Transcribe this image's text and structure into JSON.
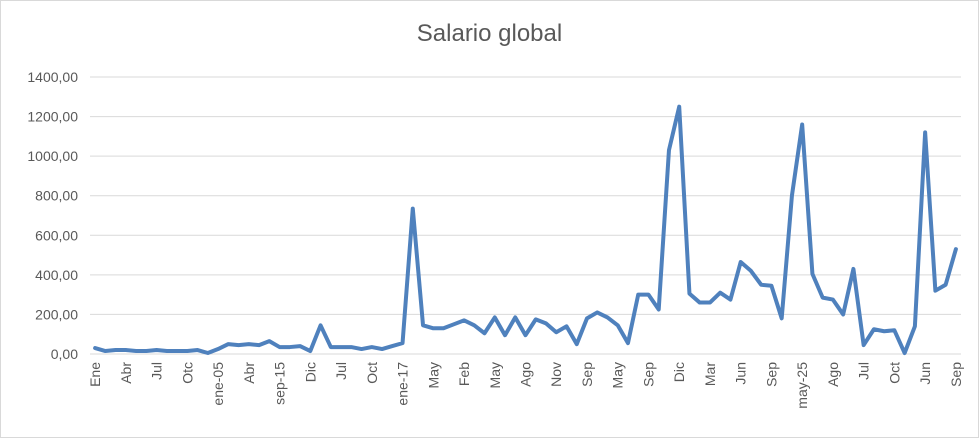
{
  "chart_data": {
    "type": "line",
    "title": "Salario global",
    "xlabel": "",
    "ylabel": "",
    "ylim": [
      0,
      1400
    ],
    "y_ticks": [
      "0,00",
      "200,00",
      "400,00",
      "600,00",
      "800,00",
      "1000,00",
      "1200,00",
      "1400,00"
    ],
    "y_tick_values": [
      0,
      200,
      400,
      600,
      800,
      1000,
      1200,
      1400
    ],
    "x_tick_labels": [
      "Ene",
      "Abr",
      "Jul",
      "Otc",
      "ene-05",
      "Abr",
      "sep-15",
      "Dic",
      "Jul",
      "Oct",
      "ene-17",
      "May",
      "Feb",
      "May",
      "Ago",
      "Nov",
      "Sep",
      "May",
      "Sep",
      "Dic",
      "Mar",
      "Jun",
      "Sep",
      "may-25",
      "Ago",
      "Jul",
      "Oct",
      "Jun",
      "Sep"
    ],
    "x_tick_index": [
      0,
      3,
      6,
      9,
      12,
      15,
      18,
      21,
      24,
      27,
      30,
      33,
      36,
      39,
      42,
      45,
      48,
      51,
      54,
      57,
      60,
      63,
      66,
      69,
      72,
      75,
      78,
      81,
      84
    ],
    "grid": true,
    "legend": "none",
    "line_color": "#4f81bd",
    "series": [
      {
        "values": [
          30,
          15,
          20,
          20,
          15,
          15,
          20,
          15,
          15,
          15,
          20,
          5,
          25,
          50,
          45,
          50,
          45,
          65,
          35,
          35,
          40,
          15,
          145,
          35,
          35,
          35,
          25,
          35,
          25,
          40,
          55,
          735,
          145,
          130,
          130,
          150,
          170,
          145,
          105,
          185,
          95,
          185,
          95,
          175,
          155,
          110,
          140,
          50,
          180,
          210,
          185,
          145,
          55,
          300,
          300,
          225,
          1030,
          1250,
          305,
          260,
          260,
          310,
          275,
          465,
          420,
          350,
          345,
          180,
          800,
          1160,
          405,
          285,
          275,
          200,
          430,
          45,
          125,
          115,
          120,
          5,
          140,
          1120,
          320,
          350,
          530
        ]
      }
    ]
  }
}
